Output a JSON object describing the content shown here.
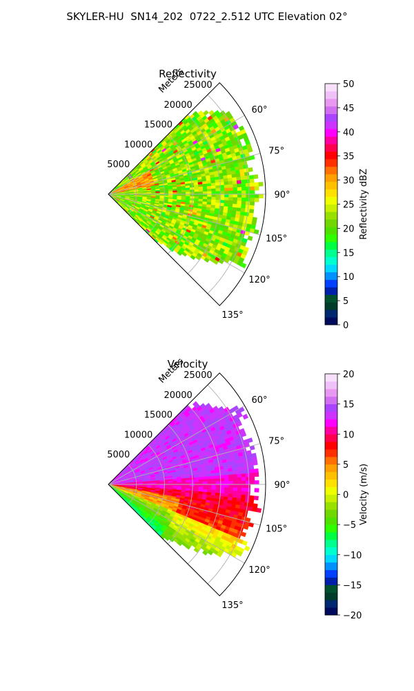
{
  "suptitle": "SKYLER-HU  SN14_202  0722_2.512 UTC Elevation 02°",
  "chart_data": [
    {
      "type": "heatmap",
      "projection": "polar-sector",
      "title": "Reflectivity",
      "azimuth_range_deg": [
        45,
        135
      ],
      "azimuth_ticks": [
        "60°",
        "75°",
        "90°",
        "105°",
        "120°",
        "135°"
      ],
      "range_axis_label": "Meters",
      "range_ticks": [
        "5000",
        "10000",
        "15000",
        "20000",
        "25000"
      ],
      "max_range_m": 28000,
      "grid": true,
      "colorbar": {
        "label": "Reflectivity dBZ",
        "min": 0,
        "max": 50,
        "ticks": [
          "0",
          "5",
          "10",
          "15",
          "20",
          "25",
          "30",
          "35",
          "40",
          "45",
          "50"
        ],
        "colors": [
          "#000a5a",
          "#00286e",
          "#003c2a",
          "#005030",
          "#0020aa",
          "#0040ff",
          "#0090ff",
          "#00d8ff",
          "#00ffd0",
          "#00ff90",
          "#00ff40",
          "#30ff00",
          "#50e000",
          "#70d800",
          "#98e000",
          "#c8f000",
          "#f0ff00",
          "#ffe000",
          "#ffc000",
          "#ffa000",
          "#ff7000",
          "#ff3000",
          "#ff0000",
          "#ff0050",
          "#ff00a0",
          "#ff00ff",
          "#cc33ff",
          "#aa44ff",
          "#d070f0",
          "#e898f0",
          "#f0c0f8",
          "#f8e0fc"
        ]
      },
      "field_summary": "mostly 18-30 dBZ across the sector with scattered higher cells up to 40 dBZ"
    },
    {
      "type": "heatmap",
      "projection": "polar-sector",
      "title": "Velocity",
      "azimuth_range_deg": [
        45,
        135
      ],
      "azimuth_ticks": [
        "60°",
        "75°",
        "90°",
        "105°",
        "120°",
        "135°"
      ],
      "range_axis_label": "Meters",
      "range_ticks": [
        "5000",
        "10000",
        "15000",
        "20000",
        "25000"
      ],
      "max_range_m": 28000,
      "grid": true,
      "colorbar": {
        "label": "Velocity (m/s)",
        "min": -20,
        "max": 20,
        "ticks": [
          "−20",
          "−15",
          "−10",
          "−5",
          "0",
          "5",
          "10",
          "15",
          "20"
        ],
        "colors": [
          "#000a5a",
          "#00286e",
          "#003c2a",
          "#005030",
          "#0020aa",
          "#0040ff",
          "#0090ff",
          "#00d8ff",
          "#00ffd0",
          "#00ff90",
          "#00ff40",
          "#30ff00",
          "#50e000",
          "#70d800",
          "#98e000",
          "#c8f000",
          "#f0ff00",
          "#ffe000",
          "#ffc000",
          "#ffa000",
          "#ff7000",
          "#ff3000",
          "#ff0000",
          "#ff0050",
          "#ff00a0",
          "#ff00ff",
          "#cc33ff",
          "#aa44ff",
          "#d070f0",
          "#e898f0",
          "#f0c0f8",
          "#f8e0fc"
        ]
      },
      "field_summary": "azimuths 45-88° about +14 m/s, near 90° about +11 m/s, 95-110° about +10 m/s, 115-135° about 0 to -5 m/s"
    }
  ]
}
